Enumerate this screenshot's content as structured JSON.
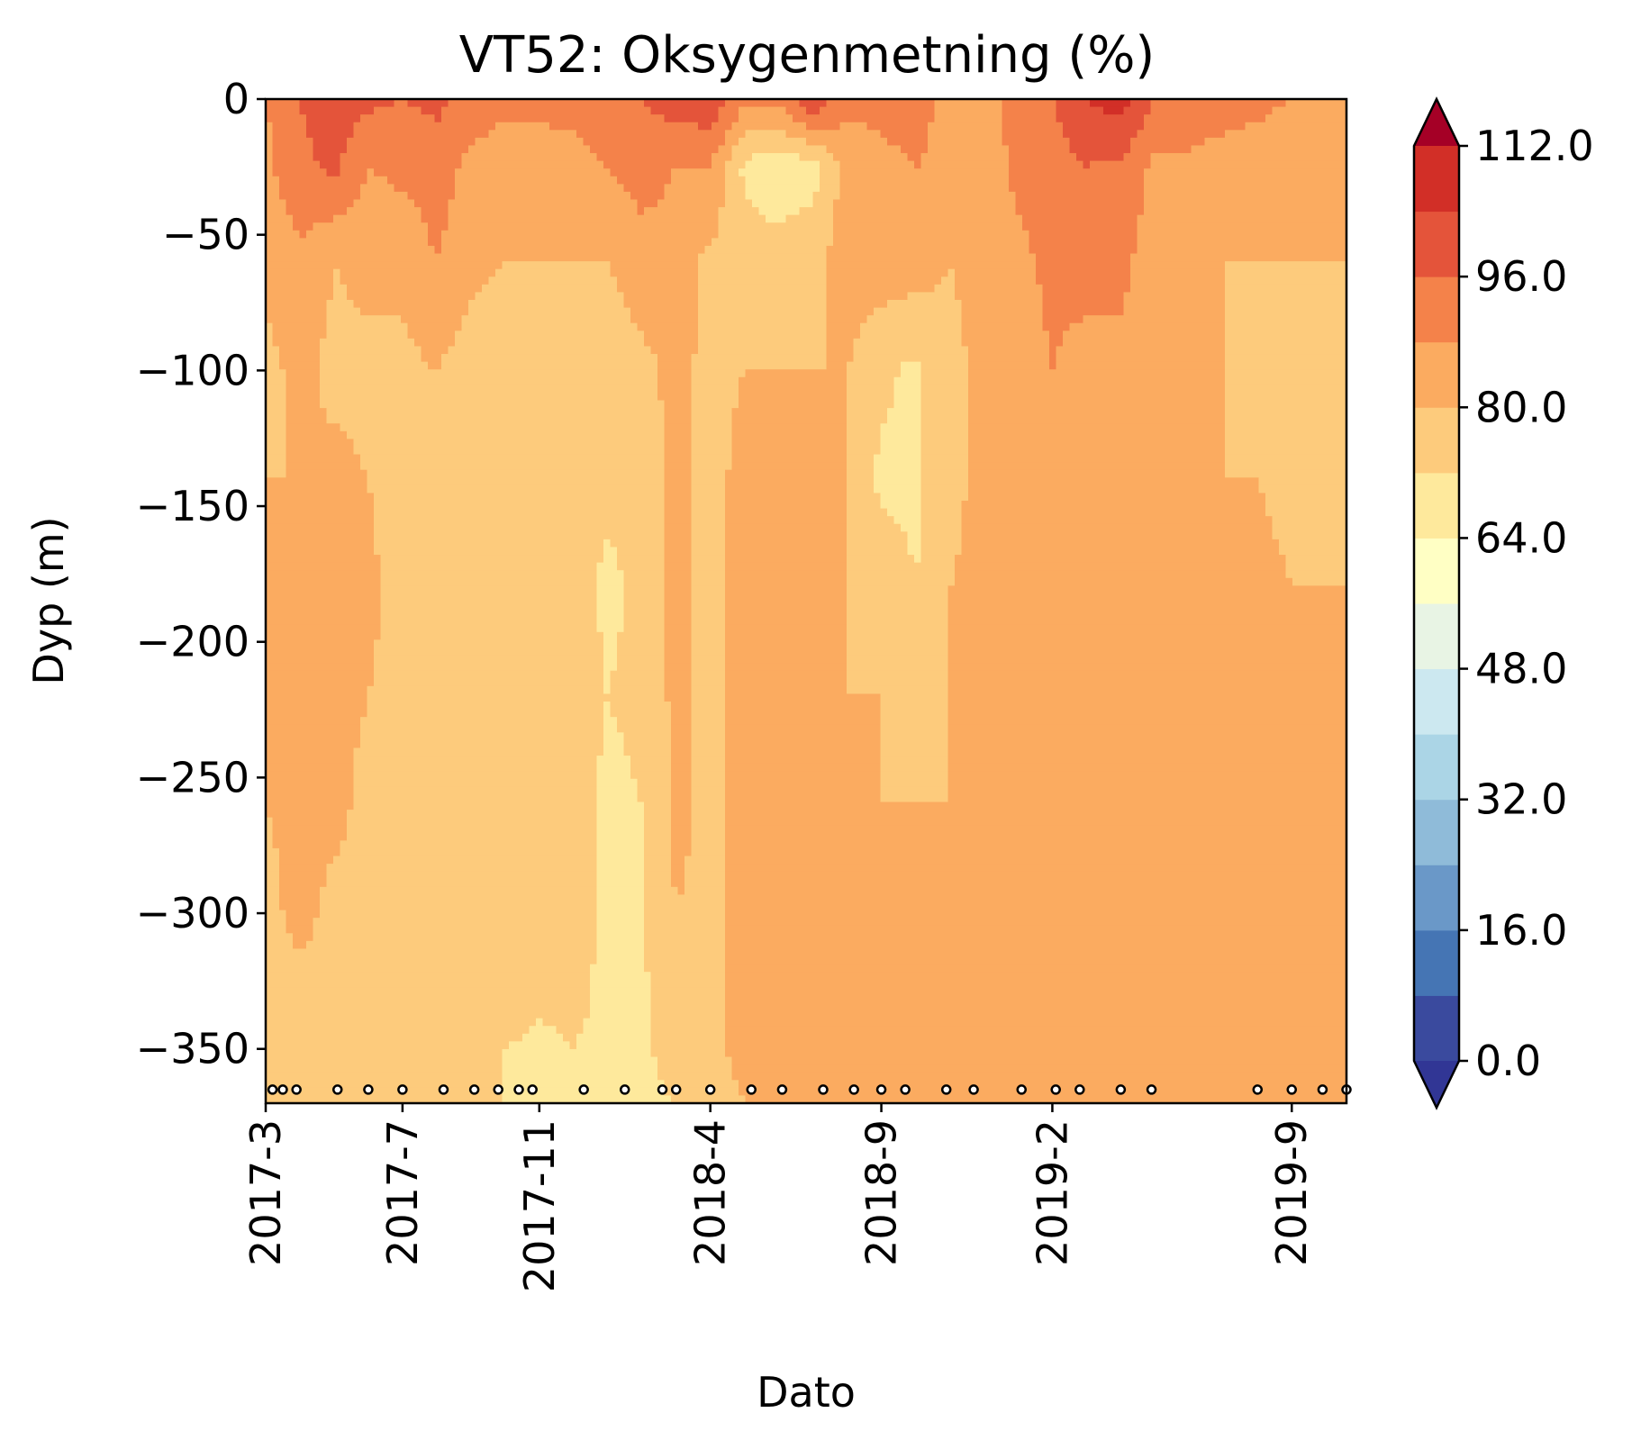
{
  "chart_data": {
    "type": "heatmap",
    "subtype": "filled-contour",
    "title": "VT52: Oksygenmetning (%)",
    "xlabel": "Dato",
    "ylabel": "Dyp (m)",
    "x_ticks": [
      "2017-3",
      "2017-7",
      "2017-11",
      "2018-4",
      "2018-9",
      "2019-2",
      "2019-9"
    ],
    "x_tick_months": [
      0,
      4,
      8,
      13,
      18,
      23,
      30
    ],
    "x_range_months": [
      0,
      31.6
    ],
    "y_ticks": [
      "0",
      "−50",
      "−100",
      "−150",
      "−200",
      "−250",
      "−300",
      "−350"
    ],
    "y_tick_values": [
      0,
      -50,
      -100,
      -150,
      -200,
      -250,
      -300,
      -350
    ],
    "ylim": [
      -370,
      0
    ],
    "colorbar": {
      "tick_labels": [
        "0.0",
        "16.0",
        "32.0",
        "48.0",
        "64.0",
        "80.0",
        "96.0",
        "112.0"
      ],
      "tick_values": [
        0,
        16,
        32,
        48,
        64,
        80,
        96,
        112
      ],
      "levels": [
        0,
        8,
        16,
        24,
        32,
        40,
        48,
        56,
        64,
        72,
        80,
        88,
        96,
        104,
        112
      ],
      "colors": [
        "#3a4a9e",
        "#4575b4",
        "#6a98c8",
        "#8fbbd9",
        "#abd5e6",
        "#cce8f0",
        "#e8f4e4",
        "#ffffc4",
        "#fee99c",
        "#fdcb7c",
        "#fbab60",
        "#f4824a",
        "#e4543a",
        "#d22f27"
      ],
      "under_color": "#313695",
      "over_color": "#a50026",
      "extend": "both"
    },
    "sample_months": [
      0.2,
      0.5,
      0.9,
      2.1,
      3.0,
      4.0,
      5.2,
      6.1,
      6.8,
      7.4,
      7.8,
      9.3,
      10.5,
      11.6,
      12.0,
      13.0,
      14.2,
      15.1,
      16.3,
      17.2,
      18.0,
      18.7,
      19.9,
      20.7,
      22.1,
      23.1,
      23.8,
      25.0,
      25.9,
      29.0,
      30.0,
      30.9,
      31.6
    ],
    "sample_depth": -365,
    "columns": [
      {
        "m": 0.0,
        "d": [
          88,
          86,
          82,
          78,
          80,
          82,
          82,
          80,
          78,
          78,
          74,
          78
        ]
      },
      {
        "m": 1.0,
        "d": [
          96,
          94,
          86,
          82,
          80,
          82,
          82,
          82,
          82,
          78,
          78,
          78
        ]
      },
      {
        "m": 2.0,
        "d": [
          100,
          98,
          80,
          78,
          82,
          84,
          82,
          82,
          78,
          78,
          78,
          78
        ]
      },
      {
        "m": 3.0,
        "d": [
          98,
          88,
          82,
          78,
          80,
          82,
          80,
          78,
          78,
          78,
          76,
          78
        ]
      },
      {
        "m": 4.0,
        "d": [
          96,
          90,
          82,
          78,
          76,
          76,
          78,
          80,
          78,
          78,
          76,
          78
        ]
      },
      {
        "m": 5.0,
        "d": [
          98,
          92,
          88,
          80,
          78,
          76,
          76,
          76,
          76,
          76,
          74,
          76
        ]
      },
      {
        "m": 6.0,
        "d": [
          92,
          86,
          82,
          76,
          74,
          76,
          76,
          76,
          76,
          76,
          74,
          74
        ]
      },
      {
        "m": 7.0,
        "d": [
          90,
          84,
          80,
          76,
          76,
          78,
          78,
          76,
          76,
          76,
          72,
          72
        ]
      },
      {
        "m": 8.0,
        "d": [
          90,
          84,
          80,
          76,
          76,
          76,
          76,
          76,
          76,
          74,
          70,
          70
        ]
      },
      {
        "m": 9.0,
        "d": [
          92,
          84,
          80,
          76,
          76,
          76,
          76,
          76,
          76,
          74,
          72,
          70
        ]
      },
      {
        "m": 10.0,
        "d": [
          94,
          88,
          80,
          76,
          74,
          70,
          72,
          70,
          70,
          70,
          70,
          70
        ]
      },
      {
        "m": 11.0,
        "d": [
          96,
          92,
          84,
          78,
          76,
          74,
          74,
          72,
          72,
          70,
          70,
          70
        ]
      },
      {
        "m": 12.0,
        "d": [
          100,
          88,
          84,
          82,
          82,
          82,
          82,
          82,
          80,
          80,
          76,
          72
        ]
      },
      {
        "m": 13.0,
        "d": [
          102,
          88,
          78,
          78,
          78,
          78,
          78,
          78,
          78,
          78,
          76,
          74
        ]
      },
      {
        "m": 14.0,
        "d": [
          90,
          70,
          76,
          80,
          82,
          84,
          84,
          84,
          84,
          84,
          84,
          80
        ]
      },
      {
        "m": 15.0,
        "d": [
          90,
          66,
          76,
          80,
          82,
          84,
          84,
          84,
          84,
          84,
          84,
          84
        ]
      },
      {
        "m": 16.0,
        "d": [
          104,
          68,
          78,
          80,
          82,
          82,
          84,
          84,
          84,
          84,
          84,
          84
        ]
      },
      {
        "m": 17.0,
        "d": [
          90,
          84,
          84,
          80,
          80,
          80,
          80,
          80,
          80,
          80,
          80,
          80
        ]
      },
      {
        "m": 18.0,
        "d": [
          90,
          86,
          84,
          74,
          70,
          78,
          80,
          80,
          80,
          80,
          80,
          80
        ]
      },
      {
        "m": 19.0,
        "d": [
          92,
          88,
          84,
          70,
          70,
          72,
          78,
          80,
          80,
          80,
          80,
          80
        ]
      },
      {
        "m": 20.0,
        "d": [
          84,
          86,
          80,
          78,
          78,
          80,
          80,
          80,
          80,
          80,
          82,
          82
        ]
      },
      {
        "m": 21.0,
        "d": [
          86,
          84,
          82,
          82,
          82,
          82,
          82,
          82,
          80,
          82,
          82,
          82
        ]
      },
      {
        "m": 22.0,
        "d": [
          90,
          90,
          86,
          84,
          82,
          82,
          82,
          82,
          82,
          82,
          82,
          82
        ]
      },
      {
        "m": 23.0,
        "d": [
          96,
          92,
          90,
          88,
          84,
          84,
          82,
          82,
          82,
          82,
          82,
          82
        ]
      },
      {
        "m": 24.0,
        "d": [
          104,
          96,
          92,
          84,
          82,
          82,
          82,
          82,
          82,
          82,
          82,
          82
        ]
      },
      {
        "m": 25.0,
        "d": [
          108,
          94,
          90,
          86,
          84,
          82,
          82,
          82,
          82,
          82,
          82,
          82
        ]
      },
      {
        "m": 26.0,
        "d": [
          96,
          86,
          84,
          82,
          82,
          82,
          82,
          82,
          82,
          82,
          82,
          82
        ]
      },
      {
        "m": 27.0,
        "d": [
          94,
          86,
          84,
          82,
          82,
          82,
          82,
          82,
          82,
          82,
          82,
          82
        ]
      },
      {
        "m": 28.0,
        "d": [
          92,
          84,
          80,
          80,
          80,
          82,
          82,
          82,
          82,
          82,
          82,
          82
        ]
      },
      {
        "m": 29.0,
        "d": [
          90,
          84,
          80,
          78,
          80,
          82,
          82,
          82,
          82,
          82,
          82,
          82
        ]
      },
      {
        "m": 30.0,
        "d": [
          88,
          82,
          80,
          78,
          78,
          80,
          80,
          82,
          82,
          82,
          82,
          82
        ]
      },
      {
        "m": 31.6,
        "d": [
          86,
          82,
          80,
          78,
          78,
          80,
          80,
          82,
          82,
          82,
          82,
          82
        ]
      }
    ],
    "depth_levels": [
      0,
      -25,
      -60,
      -100,
      -140,
      -180,
      -220,
      -260,
      -300,
      -330,
      -350,
      -370
    ]
  }
}
